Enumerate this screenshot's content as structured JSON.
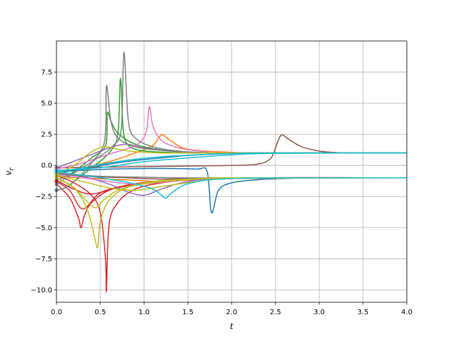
{
  "chart_data": {
    "type": "line",
    "xlabel": "t",
    "ylabel": "v",
    "ylabel_sub": "r",
    "xlim": [
      0.0,
      4.0
    ],
    "ylim": [
      -11.0,
      10.0
    ],
    "grid": true,
    "legend": "none",
    "x_ticks": [
      0.0,
      0.5,
      1.0,
      1.5,
      2.0,
      2.5,
      3.0,
      3.5,
      4.0
    ],
    "x_tick_labels": [
      "0.0",
      "0.5",
      "1.0",
      "1.5",
      "2.0",
      "2.5",
      "3.0",
      "3.5",
      "4.0"
    ],
    "y_ticks": [
      -10.0,
      -7.5,
      -5.0,
      -2.5,
      0.0,
      2.5,
      5.0,
      7.5
    ],
    "y_tick_labels": [
      "−10.0",
      "−7.5",
      "−5.0",
      "−2.5",
      "0.0",
      "2.5",
      "5.0",
      "7.5"
    ],
    "series": [
      {
        "color": "#1f77b4",
        "x": [
          0,
          0.3,
          0.6,
          1.0,
          1.3,
          1.6,
          1.72,
          1.77,
          1.85,
          2.0,
          2.3,
          2.6,
          3.0,
          4.0
        ],
        "y": [
          -0.5,
          -0.4,
          -0.3,
          -0.25,
          -0.25,
          -0.3,
          -0.5,
          -3.8,
          -2.0,
          -1.4,
          -1.15,
          -1.05,
          -1.0,
          -1.0
        ]
      },
      {
        "color": "#1f77b4",
        "x": [
          0,
          0.3,
          0.6,
          0.9,
          1.2,
          1.5,
          2.0,
          2.5,
          3.0,
          4.0
        ],
        "y": [
          -0.6,
          -0.3,
          0.1,
          0.4,
          0.6,
          0.8,
          0.95,
          1.0,
          1.0,
          1.0
        ]
      },
      {
        "color": "#ff7f0e",
        "x": [
          0,
          0.3,
          0.6,
          0.9,
          1.1,
          1.2,
          1.3,
          1.5,
          2.0,
          2.5,
          4.0
        ],
        "y": [
          -0.5,
          -0.2,
          0.3,
          1.0,
          1.6,
          2.45,
          2.0,
          1.3,
          1.05,
          1.0,
          1.0
        ]
      },
      {
        "color": "#ff7f0e",
        "x": [
          0,
          0.3,
          0.6,
          0.9,
          1.2,
          1.5,
          2.0,
          3.0,
          4.0
        ],
        "y": [
          -0.9,
          -1.0,
          -1.1,
          -1.2,
          -1.3,
          -1.2,
          -1.05,
          -1.0,
          -1.0
        ]
      },
      {
        "color": "#2ca02c",
        "x": [
          0,
          0.1,
          0.2,
          0.4,
          0.6,
          0.7,
          0.73,
          0.76,
          0.8,
          0.9,
          1.1,
          1.5,
          2.0,
          4.0
        ],
        "y": [
          -2.0,
          -1.8,
          -1.3,
          -0.2,
          1.0,
          2.5,
          7.0,
          3.0,
          1.8,
          1.3,
          1.1,
          1.0,
          1.0,
          1.0
        ]
      },
      {
        "color": "#2ca02c",
        "x": [
          0,
          0.2,
          0.4,
          0.56,
          0.58,
          0.62,
          0.7,
          0.9,
          1.2,
          1.6,
          2.0,
          4.0
        ],
        "y": [
          -1.2,
          -0.5,
          0.6,
          1.6,
          4.2,
          3.6,
          2.6,
          1.7,
          1.25,
          1.05,
          1.0,
          1.0
        ]
      },
      {
        "color": "#d62728",
        "x": [
          0,
          0.2,
          0.4,
          0.5,
          0.56,
          0.57,
          0.6,
          0.7,
          0.9,
          1.2,
          1.6,
          2.0,
          4.0
        ],
        "y": [
          -0.8,
          -1.4,
          -2.4,
          -3.8,
          -7.5,
          -10.1,
          -4.8,
          -3.0,
          -1.9,
          -1.4,
          -1.1,
          -1.0,
          -1.0
        ]
      },
      {
        "color": "#d62728",
        "x": [
          0,
          0.15,
          0.25,
          0.28,
          0.32,
          0.4,
          0.6,
          0.9,
          1.2,
          1.6,
          2.0,
          4.0
        ],
        "y": [
          -1.5,
          -2.6,
          -4.2,
          -5.0,
          -4.0,
          -3.0,
          -2.0,
          -1.5,
          -1.25,
          -1.1,
          -1.0,
          -1.0
        ]
      },
      {
        "color": "#d62728",
        "x": [
          0,
          0.15,
          0.3,
          0.5,
          0.8,
          1.1,
          1.5,
          2.0,
          4.0
        ],
        "y": [
          -1.3,
          -2.0,
          -3.5,
          -2.2,
          -1.6,
          -1.3,
          -1.1,
          -1.0,
          -1.0
        ]
      },
      {
        "color": "#d62728",
        "x": [
          0,
          0.2,
          0.4,
          0.7,
          1.0,
          1.4,
          2.0,
          4.0
        ],
        "y": [
          -1.2,
          -1.9,
          -2.3,
          -1.8,
          -1.4,
          -1.15,
          -1.0,
          -1.0
        ]
      },
      {
        "color": "#9467bd",
        "x": [
          0,
          0.3,
          0.6,
          0.8,
          1.0,
          1.2,
          1.5,
          2.0,
          4.0
        ],
        "y": [
          -0.6,
          -0.9,
          -1.5,
          -2.1,
          -2.4,
          -1.9,
          -1.3,
          -1.05,
          -1.0
        ]
      },
      {
        "color": "#9467bd",
        "x": [
          0,
          0.3,
          0.6,
          0.8,
          1.0,
          1.4,
          2.0,
          4.0
        ],
        "y": [
          -0.2,
          0.6,
          1.4,
          1.7,
          1.4,
          1.1,
          1.0,
          1.0
        ]
      },
      {
        "color": "#8c564b",
        "x": [
          0,
          0.5,
          1.0,
          1.5,
          2.0,
          2.3,
          2.45,
          2.52,
          2.57,
          2.65,
          2.8,
          3.0,
          3.2,
          3.5,
          4.0
        ],
        "y": [
          -0.2,
          -0.15,
          -0.1,
          -0.05,
          0.0,
          0.1,
          0.6,
          1.8,
          2.45,
          2.1,
          1.5,
          1.15,
          1.03,
          1.0,
          1.0
        ]
      },
      {
        "color": "#8c564b",
        "x": [
          0,
          0.4,
          0.8,
          1.2,
          1.6,
          2.0,
          4.0
        ],
        "y": [
          -0.7,
          -0.9,
          -1.0,
          -1.1,
          -1.05,
          -1.0,
          -1.0
        ]
      },
      {
        "color": "#e377c2",
        "x": [
          0,
          0.3,
          0.6,
          0.9,
          1.02,
          1.06,
          1.1,
          1.2,
          1.4,
          1.7,
          2.0,
          4.0
        ],
        "y": [
          -0.3,
          0.2,
          0.9,
          1.6,
          2.6,
          4.7,
          3.2,
          2.0,
          1.4,
          1.1,
          1.0,
          1.0
        ]
      },
      {
        "color": "#e377c2",
        "x": [
          0,
          0.3,
          0.6,
          0.9,
          1.2,
          1.6,
          2.0,
          4.0
        ],
        "y": [
          -0.8,
          -1.0,
          -1.3,
          -1.5,
          -1.35,
          -1.1,
          -1.0,
          -1.0
        ]
      },
      {
        "color": "#7f7f7f",
        "x": [
          0,
          0.1,
          0.2,
          0.4,
          0.55,
          0.57,
          0.62,
          0.7,
          0.9,
          1.2,
          1.6,
          2.0,
          4.0
        ],
        "y": [
          -2.0,
          -1.8,
          -1.3,
          0.2,
          2.0,
          6.4,
          3.6,
          2.2,
          1.5,
          1.2,
          1.05,
          1.0,
          1.0
        ]
      },
      {
        "color": "#7f7f7f",
        "x": [
          0,
          0.2,
          0.45,
          0.65,
          0.74,
          0.77,
          0.82,
          0.9,
          1.1,
          1.4,
          1.8,
          4.0
        ],
        "y": [
          -1.5,
          -0.6,
          0.5,
          1.6,
          3.0,
          9.1,
          3.6,
          2.2,
          1.5,
          1.15,
          1.0,
          1.0
        ]
      },
      {
        "color": "#7f7f7f",
        "x": [
          0,
          0.3,
          0.6,
          1.0,
          1.4,
          2.0,
          4.0
        ],
        "y": [
          -0.7,
          -0.8,
          -0.9,
          -0.95,
          -1.0,
          -1.0,
          -1.0
        ]
      },
      {
        "color": "#bcbd22",
        "x": [
          0,
          0.2,
          0.35,
          0.43,
          0.47,
          0.5,
          0.6,
          0.8,
          1.1,
          1.5,
          2.0,
          4.0
        ],
        "y": [
          -1.0,
          -1.8,
          -3.5,
          -5.6,
          -6.6,
          -4.5,
          -2.8,
          -1.8,
          -1.3,
          -1.1,
          -1.0,
          -1.0
        ]
      },
      {
        "color": "#bcbd22",
        "x": [
          0,
          0.2,
          0.35,
          0.45,
          0.55,
          0.7,
          0.9,
          1.2,
          1.6,
          2.0,
          4.0
        ],
        "y": [
          -1.0,
          -1.8,
          -2.9,
          -3.4,
          -2.7,
          -2.0,
          -1.6,
          -1.3,
          -1.1,
          -1.0,
          -1.0
        ]
      },
      {
        "color": "#bcbd22",
        "x": [
          0,
          0.2,
          0.4,
          0.55,
          0.7,
          0.9,
          1.2,
          1.6,
          2.0,
          4.0
        ],
        "y": [
          -0.7,
          0.0,
          1.1,
          1.5,
          1.3,
          1.1,
          1.0,
          1.0,
          1.0,
          1.0
        ]
      },
      {
        "color": "#bcbd22",
        "x": [
          0,
          0.3,
          0.6,
          0.9,
          1.2,
          1.6,
          2.0,
          4.0
        ],
        "y": [
          -0.8,
          -1.3,
          -1.8,
          -2.0,
          -1.7,
          -1.3,
          -1.05,
          -1.0
        ]
      },
      {
        "color": "#17becf",
        "x": [
          0,
          0.3,
          0.6,
          0.9,
          1.1,
          1.2,
          1.25,
          1.3,
          1.45,
          1.7,
          2.0,
          2.5,
          4.0
        ],
        "y": [
          -0.5,
          -0.8,
          -1.1,
          -1.5,
          -1.9,
          -2.4,
          -2.65,
          -2.3,
          -1.6,
          -1.2,
          -1.05,
          -1.0,
          -1.0
        ]
      },
      {
        "color": "#17becf",
        "x": [
          0,
          0.3,
          0.6,
          0.9,
          1.2,
          1.6,
          2.0,
          2.5,
          4.0
        ],
        "y": [
          -0.5,
          -0.2,
          0.2,
          0.5,
          0.7,
          0.85,
          0.95,
          1.0,
          1.0
        ]
      },
      {
        "color": "#17becf",
        "x": [
          0,
          0.3,
          0.6,
          1.0,
          1.5,
          2.0,
          2.5,
          4.0
        ],
        "y": [
          -0.4,
          -0.3,
          -0.1,
          0.3,
          0.6,
          0.85,
          0.97,
          1.0
        ]
      }
    ]
  }
}
